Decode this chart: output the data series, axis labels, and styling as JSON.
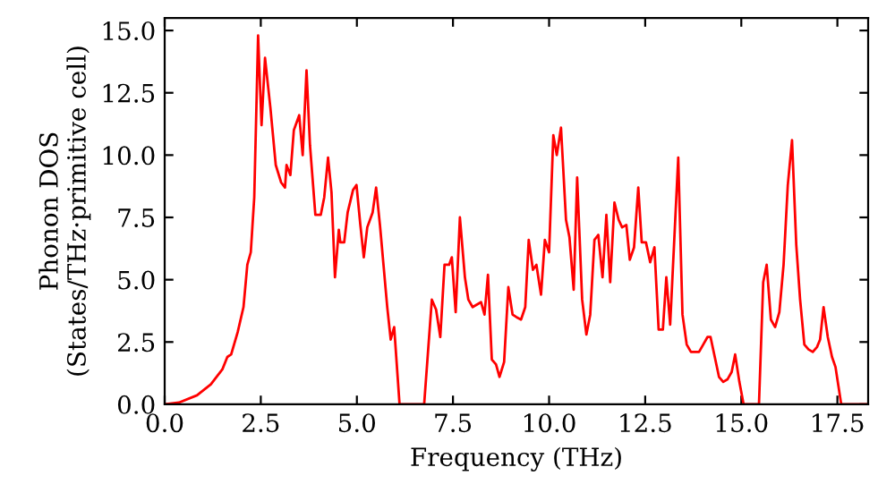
{
  "chart_data": {
    "type": "line",
    "xlabel": "Frequency (THz)",
    "ylabel": "Phonon DOS\n(States/THz·primitive cell)",
    "x": [
      0,
      0.37,
      0.84,
      1.2,
      1.5,
      1.63,
      1.73,
      1.9,
      2.05,
      2.15,
      2.24,
      2.33,
      2.43,
      2.52,
      2.61,
      2.75,
      2.89,
      3.03,
      3.13,
      3.17,
      3.27,
      3.36,
      3.5,
      3.59,
      3.69,
      3.78,
      3.92,
      4.06,
      4.15,
      4.25,
      4.34,
      4.43,
      4.53,
      4.57,
      4.67,
      4.76,
      4.9,
      4.99,
      5.09,
      5.18,
      5.27,
      5.41,
      5.5,
      5.6,
      5.79,
      5.88,
      5.97,
      6.11,
      6.75,
      6.95,
      7.06,
      7.17,
      7.28,
      7.4,
      7.47,
      7.57,
      7.68,
      7.81,
      7.9,
      8.01,
      8.12,
      8.23,
      8.32,
      8.41,
      8.51,
      8.62,
      8.71,
      8.83,
      8.94,
      9.05,
      9.15,
      9.27,
      9.38,
      9.47,
      9.58,
      9.67,
      9.79,
      9.89,
      10.0,
      10.11,
      10.2,
      10.31,
      10.44,
      10.53,
      10.64,
      10.73,
      10.86,
      10.97,
      11.07,
      11.18,
      11.28,
      11.39,
      11.49,
      11.59,
      11.7,
      11.81,
      11.9,
      12.01,
      12.1,
      12.21,
      12.32,
      12.41,
      12.52,
      12.63,
      12.74,
      12.85,
      12.96,
      13.05,
      13.15,
      13.25,
      13.36,
      13.47,
      13.58,
      13.69,
      13.8,
      13.9,
      14.01,
      14.12,
      14.2,
      14.31,
      14.42,
      14.53,
      14.64,
      14.75,
      14.84,
      14.95,
      15.06,
      15.46,
      15.57,
      15.66,
      15.77,
      15.88,
      15.99,
      16.1,
      16.21,
      16.32,
      16.43,
      16.53,
      16.64,
      16.75,
      16.86,
      16.97,
      17.05,
      17.14,
      17.25,
      17.36,
      17.45,
      17.56,
      17.6,
      18.3
    ],
    "series": [
      {
        "color": "#ff0000",
        "values": [
          0,
          0.07,
          0.36,
          0.8,
          1.4,
          1.9,
          2.0,
          2.9,
          3.9,
          5.6,
          6.1,
          8.3,
          14.8,
          11.2,
          13.9,
          11.9,
          9.6,
          8.9,
          8.7,
          9.6,
          9.2,
          11.0,
          11.6,
          10.0,
          13.4,
          10.4,
          7.6,
          7.6,
          8.3,
          9.9,
          8.5,
          5.1,
          7.0,
          6.5,
          6.5,
          7.7,
          8.6,
          8.8,
          7.2,
          5.9,
          7.1,
          7.7,
          8.7,
          7.2,
          3.9,
          2.6,
          3.1,
          0,
          0,
          4.2,
          3.8,
          2.7,
          5.6,
          5.6,
          5.9,
          3.7,
          7.5,
          5.1,
          4.2,
          3.9,
          4.0,
          4.1,
          3.6,
          5.2,
          1.8,
          1.6,
          1.1,
          1.7,
          4.7,
          3.6,
          3.5,
          3.4,
          3.9,
          6.6,
          5.4,
          5.6,
          4.4,
          6.6,
          6.1,
          10.8,
          10.0,
          11.1,
          7.4,
          6.7,
          4.6,
          9.1,
          4.2,
          2.8,
          3.6,
          6.6,
          6.8,
          5.1,
          7.6,
          4.9,
          8.1,
          7.4,
          7.1,
          7.2,
          5.8,
          6.3,
          8.7,
          6.5,
          6.5,
          5.7,
          6.3,
          3.0,
          3.0,
          5.1,
          3.2,
          6.4,
          9.9,
          3.6,
          2.4,
          2.1,
          2.1,
          2.1,
          2.4,
          2.7,
          2.7,
          1.9,
          1.1,
          0.9,
          1.0,
          1.3,
          2.0,
          0.9,
          0,
          0,
          4.9,
          5.6,
          3.4,
          3.1,
          3.7,
          5.6,
          8.8,
          10.6,
          6.4,
          4.2,
          2.4,
          2.2,
          2.1,
          2.3,
          2.6,
          3.9,
          2.7,
          1.9,
          1.5,
          0.4,
          0,
          0
        ]
      }
    ],
    "xlim": [
      0,
      18.3
    ],
    "ylim": [
      0,
      15.5
    ],
    "xticks": [
      {
        "value": 0,
        "label": "0.0"
      },
      {
        "value": 2.5,
        "label": "2.5"
      },
      {
        "value": 5,
        "label": "5.0"
      },
      {
        "value": 7.5,
        "label": "7.5"
      },
      {
        "value": 10,
        "label": "10.0"
      },
      {
        "value": 12.5,
        "label": "12.5"
      },
      {
        "value": 15,
        "label": "15.0"
      },
      {
        "value": 17.5,
        "label": "17.5"
      }
    ],
    "yticks": [
      {
        "value": 0,
        "label": "0.0"
      },
      {
        "value": 2.5,
        "label": "2.5"
      },
      {
        "value": 5,
        "label": "5.0"
      },
      {
        "value": 7.5,
        "label": "7.5"
      },
      {
        "value": 10,
        "label": "10.0"
      },
      {
        "value": 12.5,
        "label": "12.5"
      },
      {
        "value": 15,
        "label": "15.0"
      }
    ],
    "grid": false,
    "legend": false
  }
}
